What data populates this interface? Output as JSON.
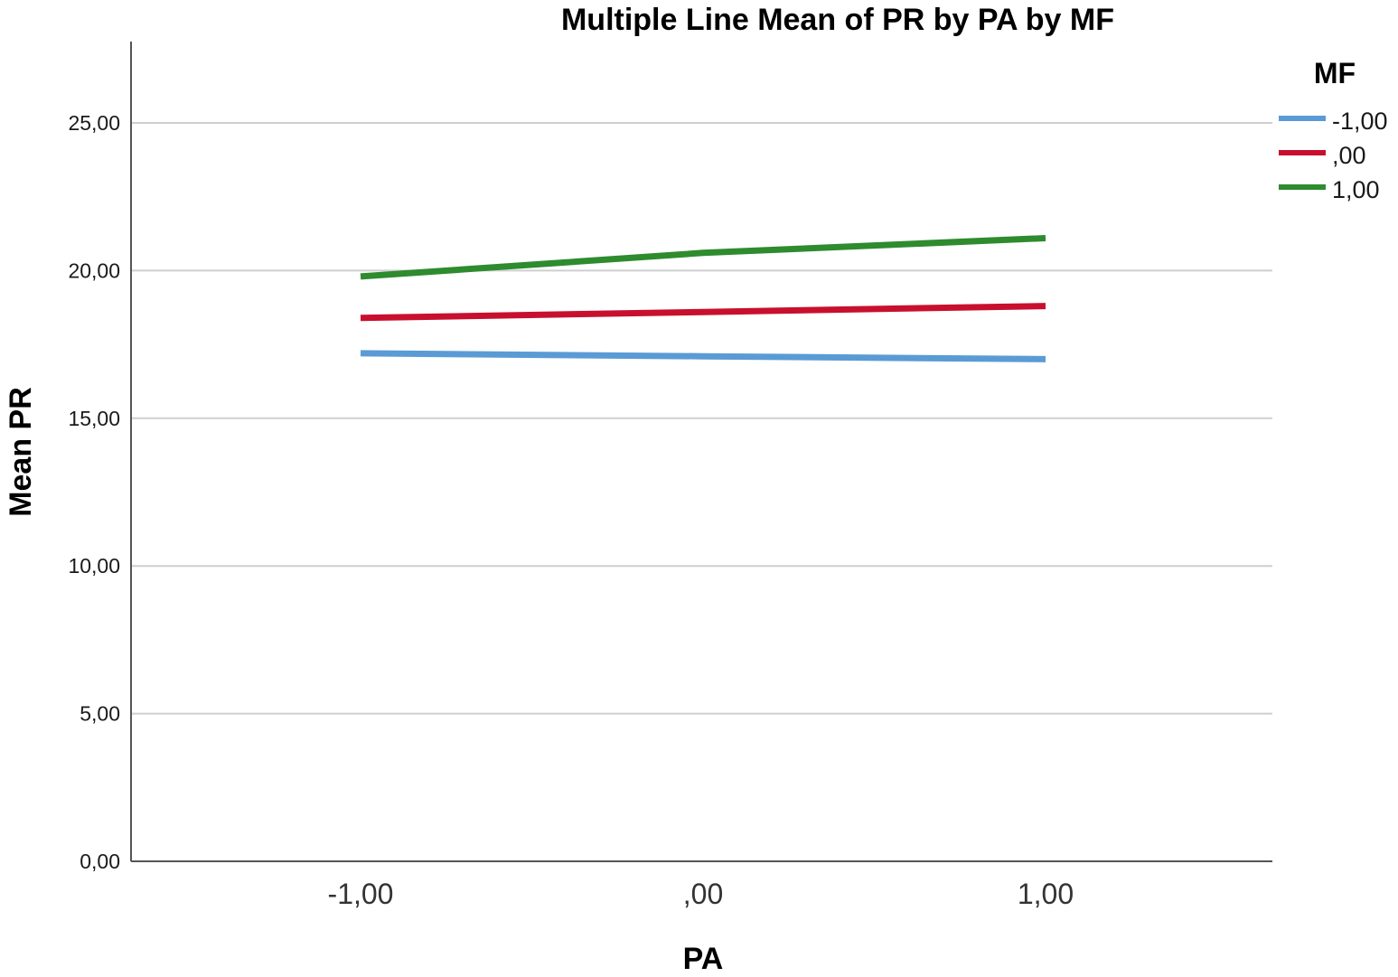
{
  "chart_data": {
    "type": "line",
    "title": "Multiple Line Mean of PR by PA by MF",
    "xlabel": "PA",
    "ylabel": "Mean PR",
    "categories": [
      "-1,00",
      ",00",
      "1,00"
    ],
    "x": [
      -1,
      0,
      1
    ],
    "ylim": [
      0,
      25
    ],
    "yticks": [
      0,
      5,
      10,
      15,
      20,
      25
    ],
    "ytick_labels": [
      "0,00",
      "5,00",
      "10,00",
      "15,00",
      "20,00",
      "25,00"
    ],
    "grid": true,
    "legend_title": "MF",
    "legend_position": "top-right",
    "series": [
      {
        "name": "-1,00",
        "color": "#5b9bd5",
        "values": [
          17.2,
          17.1,
          17.0
        ]
      },
      {
        "name": ",00",
        "color": "#c8102e",
        "values": [
          18.4,
          18.6,
          18.8
        ]
      },
      {
        "name": "1,00",
        "color": "#2e8b2e",
        "values": [
          19.8,
          20.6,
          21.1
        ]
      }
    ]
  }
}
